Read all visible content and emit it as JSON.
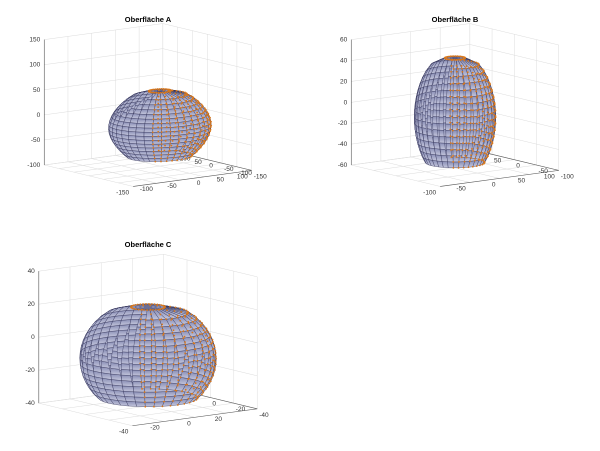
{
  "figure": {
    "background": "#ffffff"
  },
  "style": {
    "surface_top": "#8a8fb6",
    "surface_bottom": "#c4c6dc",
    "edge": "#2b2b52",
    "marker": "#d9771a",
    "grid": "#dcdcdc",
    "axis": "#555555"
  },
  "chart_data": [
    {
      "type": "surface3d",
      "title": "Oberfläche A",
      "xlim": [
        -150,
        100
      ],
      "ylim": [
        -150,
        150
      ],
      "zlim": [
        -100,
        150
      ],
      "xticks": [
        100,
        50,
        0,
        -50,
        -100,
        -150
      ],
      "yticks": [
        -150,
        -100,
        -50,
        0,
        50,
        100,
        150
      ],
      "zticks": [
        150,
        100,
        50,
        0,
        -50,
        -100
      ],
      "shape": {
        "radius": 80,
        "z_top": 50,
        "z_bottom": -80,
        "bulge": 0.15
      },
      "markers": true,
      "grid": true
    },
    {
      "type": "surface3d",
      "title": "Oberfläche B",
      "xlim": [
        -100,
        100
      ],
      "ylim": [
        -100,
        100
      ],
      "zlim": [
        -60,
        60
      ],
      "xticks": [
        100,
        50,
        0,
        -50,
        -100
      ],
      "yticks": [
        -100,
        -50,
        0,
        50,
        100
      ],
      "zticks": [
        60,
        40,
        20,
        0,
        -20,
        -40,
        -60
      ],
      "shape": {
        "radius": 55,
        "z_top": 45,
        "z_bottom": -55,
        "bulge": 0.0
      },
      "markers": true,
      "grid": true
    },
    {
      "type": "surface3d",
      "title": "Oberfläche C",
      "xlim": [
        -40,
        40
      ],
      "ylim": [
        -40,
        40
      ],
      "zlim": [
        -40,
        40
      ],
      "xticks": [
        20,
        0,
        -20,
        -40
      ],
      "yticks": [
        -40,
        -20,
        0,
        20,
        40
      ],
      "zticks": [
        40,
        20,
        0,
        -20,
        -40
      ],
      "shape": {
        "radius": 35,
        "z_top": 20,
        "z_bottom": -35,
        "bulge": 0.0
      },
      "markers": true,
      "grid": true
    }
  ]
}
